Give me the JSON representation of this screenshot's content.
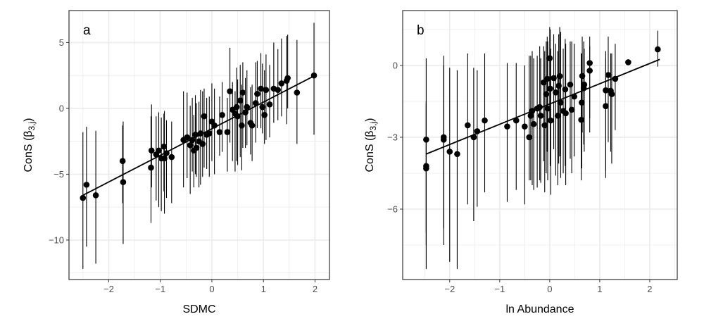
{
  "chart_data": [
    {
      "type": "scatter",
      "panel_label": "a",
      "xlabel": "SDMC",
      "ylabel": {
        "prefix": "ConS (β",
        "subscript": "3,j",
        "suffix": ")"
      },
      "xlim": [
        -2.77,
        2.28
      ],
      "ylim": [
        -13.0,
        7.43
      ],
      "xticks": [
        -2,
        -1,
        0,
        1,
        2
      ],
      "xtick_labels": [
        "−2",
        "−1",
        "0",
        "1",
        "2"
      ],
      "yticks": [
        5,
        0,
        -5,
        -10
      ],
      "ytick_labels": [
        "5",
        "0",
        "−5",
        "−10"
      ],
      "grid": true,
      "fit_line": {
        "x": [
          -2.5,
          2.0
        ],
        "y": [
          -6.6,
          2.5
        ]
      },
      "points": [
        [
          -2.5,
          -6.8,
          -12.2,
          -1.8
        ],
        [
          -2.43,
          -5.8,
          -10.5,
          -1.4
        ],
        [
          -2.25,
          -6.6,
          -11.8,
          -1.7
        ],
        [
          -1.73,
          -4.0,
          -7.2,
          -1.3
        ],
        [
          -1.72,
          -5.6,
          -10.3,
          -1.0
        ],
        [
          -1.18,
          -4.5,
          -8.7,
          -0.6
        ],
        [
          -1.17,
          -3.2,
          -6.0,
          0.3
        ],
        [
          -1.08,
          -3.5,
          -7.0,
          -0.6
        ],
        [
          -1.03,
          -3.2,
          -7.5,
          -0.3
        ],
        [
          -0.98,
          -3.8,
          -7.8,
          -0.7
        ],
        [
          -0.93,
          -2.9,
          -6.3,
          -0.4
        ],
        [
          -0.92,
          -3.8,
          -8.0,
          -0.2
        ],
        [
          -0.88,
          -3.4,
          -6.8,
          -0.9
        ],
        [
          -0.78,
          -3.7,
          -7.2,
          -1.0
        ],
        [
          -0.55,
          -2.4,
          -6.0,
          1.3
        ],
        [
          -0.48,
          -2.2,
          -5.3,
          1.2
        ],
        [
          -0.42,
          -2.8,
          -6.5,
          0.2
        ],
        [
          -0.38,
          -2.4,
          -4.8,
          0.8
        ],
        [
          -0.35,
          -3.2,
          -6.0,
          -0.5
        ],
        [
          -0.32,
          -2.0,
          -5.0,
          1.0
        ],
        [
          -0.3,
          -3.0,
          -5.2,
          0.4
        ],
        [
          -0.25,
          -2.5,
          -6.0,
          0.5
        ],
        [
          -0.22,
          -1.9,
          -5.8,
          1.4
        ],
        [
          -0.18,
          -2.7,
          -5.2,
          1.3
        ],
        [
          -0.15,
          -0.6,
          -4.5,
          1.5
        ],
        [
          -0.1,
          -2.0,
          -4.6,
          0.8
        ],
        [
          -0.05,
          -1.9,
          -5.2,
          0.9
        ],
        [
          0.0,
          -1.0,
          -4.0,
          1.9
        ],
        [
          0.05,
          -1.3,
          -5.0,
          1.5
        ],
        [
          0.15,
          -1.8,
          -3.6,
          0.9
        ],
        [
          0.2,
          -0.5,
          -3.3,
          2.0
        ],
        [
          0.3,
          -1.8,
          -4.8,
          0.8
        ],
        [
          0.35,
          1.3,
          -2.6,
          4.6
        ],
        [
          0.4,
          -0.1,
          -4.0,
          2.0
        ],
        [
          0.45,
          -0.4,
          -4.8,
          1.3
        ],
        [
          0.48,
          0.1,
          -4.0,
          3.1
        ],
        [
          0.5,
          -0.6,
          -4.3,
          2.2
        ],
        [
          0.55,
          0.6,
          -3.7,
          3.3
        ],
        [
          0.58,
          -1.3,
          -4.7,
          1.8
        ],
        [
          0.6,
          1.2,
          -3.0,
          3.5
        ],
        [
          0.65,
          -0.3,
          -3.0,
          2.3
        ],
        [
          0.68,
          0.1,
          -2.8,
          2.9
        ],
        [
          0.75,
          -1.1,
          -3.5,
          1.6
        ],
        [
          0.78,
          -1.3,
          -4.0,
          1.8
        ],
        [
          0.85,
          0.4,
          -2.6,
          3.5
        ],
        [
          0.88,
          1.1,
          -1.5,
          3.6
        ],
        [
          0.95,
          1.5,
          -1.5,
          4.2
        ],
        [
          0.98,
          0.1,
          -1.9,
          3.4
        ],
        [
          1.02,
          -0.5,
          -2.7,
          2.9
        ],
        [
          1.05,
          1.4,
          -2.4,
          4.1
        ],
        [
          1.12,
          0.3,
          -2.2,
          3.3
        ],
        [
          1.2,
          1.5,
          -1.1,
          5.0
        ],
        [
          1.28,
          1.4,
          -0.9,
          4.5
        ],
        [
          1.35,
          1.9,
          -0.6,
          5.3
        ],
        [
          1.45,
          2.1,
          -1.2,
          5.5
        ],
        [
          1.47,
          2.3,
          0.0,
          5.6
        ],
        [
          1.65,
          1.2,
          -2.7,
          5.2
        ],
        [
          1.98,
          2.5,
          -2.0,
          6.5
        ]
      ]
    },
    {
      "type": "scatter",
      "panel_label": "b",
      "xlabel": "ln Abundance",
      "ylabel": {
        "prefix": "ConS (β",
        "subscript": "3,j",
        "suffix": ")"
      },
      "xlim": [
        -2.94,
        2.55
      ],
      "ylim": [
        -8.94,
        2.29
      ],
      "xticks": [
        -2,
        -1,
        0,
        1,
        2
      ],
      "xtick_labels": [
        "−2",
        "−1",
        "0",
        "1",
        "2"
      ],
      "yticks": [
        0,
        -3,
        -6
      ],
      "ytick_labels": [
        "0",
        "−3",
        "−6"
      ],
      "grid": true,
      "fit_line": {
        "x": [
          -2.47,
          2.2
        ],
        "y": [
          -3.7,
          0.25
        ]
      },
      "points": [
        [
          -2.47,
          -3.1,
          -8.5,
          0.3
        ],
        [
          -2.47,
          -4.2,
          -7.0,
          -1.5
        ],
        [
          -2.47,
          -4.3,
          -7.5,
          -1.6
        ],
        [
          -2.12,
          -3.0,
          -7.5,
          0.4
        ],
        [
          -2.12,
          -3.1,
          -6.8,
          0.0
        ],
        [
          -2.0,
          -3.6,
          -8.2,
          -0.1
        ],
        [
          -1.85,
          -3.7,
          -8.5,
          -0.2
        ],
        [
          -1.64,
          -2.5,
          -5.8,
          0.5
        ],
        [
          -1.52,
          -3.0,
          -6.5,
          -0.1
        ],
        [
          -1.45,
          -2.75,
          -5.9,
          -0.2
        ],
        [
          -1.3,
          -2.3,
          -5.3,
          0.5
        ],
        [
          -0.85,
          -2.55,
          -5.7,
          0.1
        ],
        [
          -0.67,
          -2.3,
          -5.2,
          0.1
        ],
        [
          -0.5,
          -2.55,
          -5.8,
          0.0
        ],
        [
          -0.41,
          -3.0,
          -4.8,
          0.4
        ],
        [
          -0.38,
          -2.1,
          -4.8,
          0.4
        ],
        [
          -0.35,
          -1.9,
          -5.0,
          0.6
        ],
        [
          -0.32,
          -2.45,
          -5.2,
          0.3
        ],
        [
          -0.25,
          -1.8,
          -5.1,
          0.4
        ],
        [
          -0.2,
          -1.74,
          -4.8,
          0.8
        ],
        [
          -0.18,
          -2.1,
          -4.9,
          0.3
        ],
        [
          -0.1,
          -2.5,
          -5.3,
          0.6
        ],
        [
          -0.05,
          -0.56,
          -3.6,
          1.2
        ],
        [
          -0.12,
          -0.71,
          -4.0,
          0.8
        ],
        [
          0.0,
          0.3,
          -2.3,
          1.6
        ],
        [
          -0.07,
          -1.2,
          -4.5,
          1.0
        ],
        [
          0.01,
          -0.97,
          -4.2,
          1.5
        ],
        [
          -0.04,
          -1.8,
          -4.8,
          1.0
        ],
        [
          0.02,
          -2.3,
          -5.4,
          0.7
        ],
        [
          0.08,
          -0.53,
          -3.5,
          1.3
        ],
        [
          0.12,
          -1.13,
          -4.6,
          0.9
        ],
        [
          0.16,
          -2.1,
          -5.0,
          0.6
        ],
        [
          0.18,
          -0.85,
          -4.1,
          1.3
        ],
        [
          0.2,
          -0.45,
          -3.8,
          1.6
        ],
        [
          0.22,
          -1.55,
          -4.7,
          1.4
        ],
        [
          0.27,
          -1.9,
          -4.5,
          0.7
        ],
        [
          0.31,
          -1.0,
          -4.2,
          1.1
        ],
        [
          0.32,
          -2.0,
          -5.0,
          0.9
        ],
        [
          0.41,
          -0.8,
          -3.9,
          1.0
        ],
        [
          0.44,
          -1.85,
          -4.5,
          1.0
        ],
        [
          0.49,
          -1.3,
          -3.8,
          0.9
        ],
        [
          0.63,
          -2.27,
          -4.8,
          0.5
        ],
        [
          0.64,
          -1.55,
          -4.3,
          0.5
        ],
        [
          0.65,
          -0.44,
          -2.8,
          1.2
        ],
        [
          0.69,
          -0.8,
          -3.6,
          0.7
        ],
        [
          0.68,
          -0.95,
          -3.3,
          1.0
        ],
        [
          0.8,
          0.1,
          -2.2,
          1.2
        ],
        [
          0.8,
          -0.22,
          -2.8,
          0.8
        ],
        [
          1.12,
          -1.7,
          -4.7,
          0.3
        ],
        [
          1.12,
          -1.04,
          -4.4,
          0.6
        ],
        [
          1.17,
          -0.4,
          -3.2,
          1.2
        ],
        [
          1.22,
          -1.06,
          -3.6,
          0.5
        ],
        [
          1.24,
          -1.2,
          -4.1,
          0.5
        ],
        [
          1.31,
          -0.56,
          -2.7,
          0.9
        ],
        [
          1.57,
          0.13,
          0.13,
          0.13
        ],
        [
          2.16,
          0.67,
          -0.05,
          1.45
        ]
      ]
    }
  ]
}
